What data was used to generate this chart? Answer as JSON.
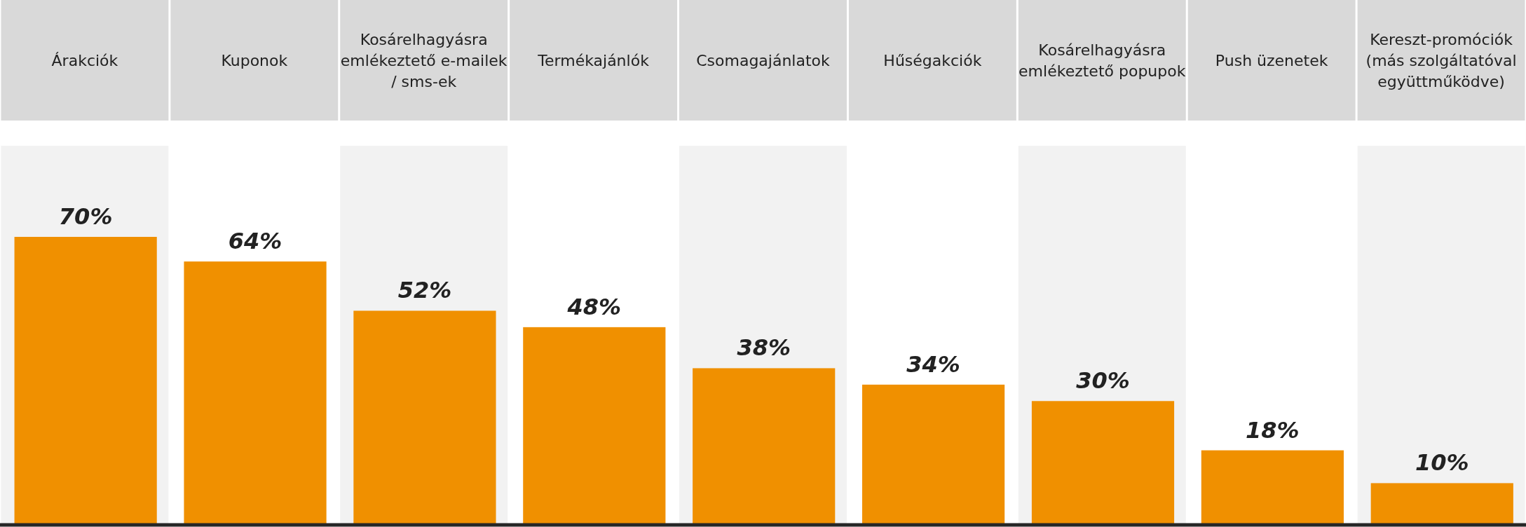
{
  "chart_data": {
    "type": "bar",
    "categories": [
      "Árakciók",
      "Kuponok",
      "Kosárelhagyásra emlékeztető e-mailek / sms-ek",
      "Termékajánlók",
      "Csomagajánlatok",
      "Hűségakciók",
      "Kosárelhagyásra emlékeztető popupok",
      "Push üzenetek",
      "Kereszt-promóciók (más szolgáltatóval együttműködve)"
    ],
    "values": [
      70,
      64,
      52,
      48,
      38,
      34,
      30,
      18,
      10
    ],
    "value_labels": [
      "70%",
      "64%",
      "52%",
      "48%",
      "38%",
      "34%",
      "30%",
      "18%",
      "10%"
    ],
    "color": "#f09000"
  }
}
